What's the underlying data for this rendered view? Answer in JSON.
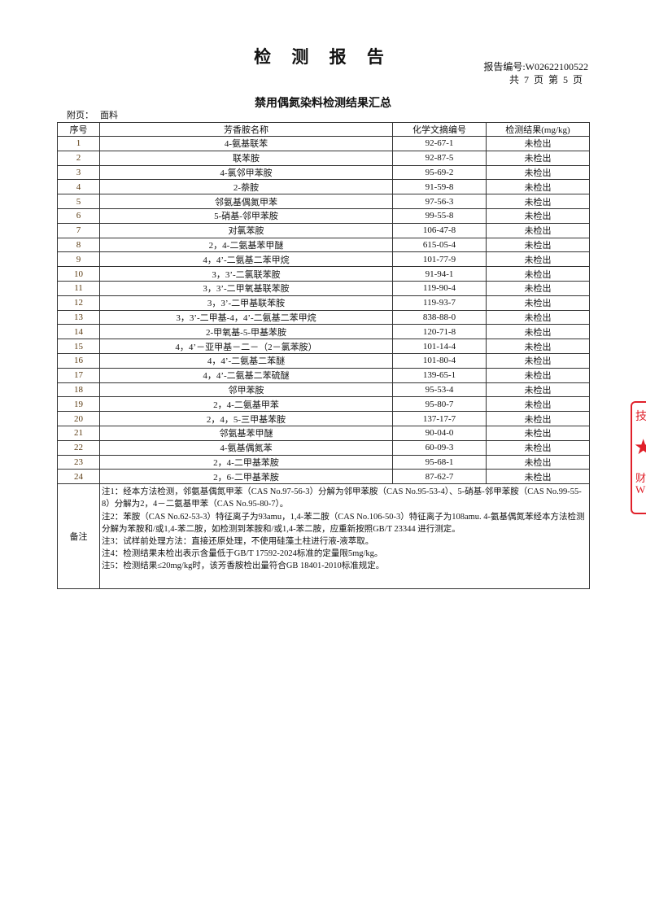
{
  "header": {
    "title": "检 测 报 告",
    "report_no": "报告编号:W02622100522",
    "pages": "共 7 页 第 5 页"
  },
  "subtitle": "禁用偶氮染料检测结果汇总",
  "appendix": {
    "label": "附页：",
    "value": "面料"
  },
  "table": {
    "headers": [
      "序号",
      "芳香胺名称",
      "化学文摘编号",
      "检测结果(mg/kg)"
    ],
    "rows": [
      [
        "1",
        "4-氨基联苯",
        "92-67-1",
        "未检出"
      ],
      [
        "2",
        "联苯胺",
        "92-87-5",
        "未检出"
      ],
      [
        "3",
        "4-氯邻甲苯胺",
        "95-69-2",
        "未检出"
      ],
      [
        "4",
        "2-萘胺",
        "91-59-8",
        "未检出"
      ],
      [
        "5",
        "邻氨基偶氮甲苯",
        "97-56-3",
        "未检出"
      ],
      [
        "6",
        "5-硝基-邻甲苯胺",
        "99-55-8",
        "未检出"
      ],
      [
        "7",
        "对氯苯胺",
        "106-47-8",
        "未检出"
      ],
      [
        "8",
        "2，4-二氨基苯甲醚",
        "615-05-4",
        "未检出"
      ],
      [
        "9",
        "4，4’-二氨基二苯甲烷",
        "101-77-9",
        "未检出"
      ],
      [
        "10",
        "3，3’-二氯联苯胺",
        "91-94-1",
        "未检出"
      ],
      [
        "11",
        "3，3’-二甲氧基联苯胺",
        "119-90-4",
        "未检出"
      ],
      [
        "12",
        "3，3’-二甲基联苯胺",
        "119-93-7",
        "未检出"
      ],
      [
        "13",
        "3，3’-二甲基-4，4’-二氨基二苯甲烷",
        "838-88-0",
        "未检出"
      ],
      [
        "14",
        "2-甲氧基-5-甲基苯胺",
        "120-71-8",
        "未检出"
      ],
      [
        "15",
        "4，4’－亚甲基－二－（2－氯苯胺）",
        "101-14-4",
        "未检出"
      ],
      [
        "16",
        "4，4’-二氨基二苯醚",
        "101-80-4",
        "未检出"
      ],
      [
        "17",
        "4，4’-二氨基二苯硫醚",
        "139-65-1",
        "未检出"
      ],
      [
        "18",
        "邻甲苯胺",
        "95-53-4",
        "未检出"
      ],
      [
        "19",
        "2，4-二氨基甲苯",
        "95-80-7",
        "未检出"
      ],
      [
        "20",
        "2，4，5-三甲基苯胺",
        "137-17-7",
        "未检出"
      ],
      [
        "21",
        "邻氨基苯甲醚",
        "90-04-0",
        "未检出"
      ],
      [
        "22",
        "4-氨基偶氮苯",
        "60-09-3",
        "未检出"
      ],
      [
        "23",
        "2，4-二甲基苯胺",
        "95-68-1",
        "未检出"
      ],
      [
        "24",
        "2，6-二甲基苯胺",
        "87-62-7",
        "未检出"
      ]
    ],
    "notes_label": "备注",
    "notes": [
      "注1：经本方法检测，邻氨基偶氮甲苯（CAS No.97-56-3）分解为邻甲苯胺（CAS No.95-53-4）、5-硝基-邻甲苯胺（CAS No.99-55-8）分解为2，4－二氨基甲苯（CAS No.95-80-7）。",
      "注2：苯胺（CAS No.62-53-3）特征离子为93amu，1,4-苯二胺（CAS No.106-50-3）特征离子为108amu. 4-氨基偶氮苯经本方法检测分解为苯胺和/或1,4-苯二胺，如检测到苯胺和/或1,4-苯二胺，应重新按照GB/T 23344 进行测定。",
      "注3：试样前处理方法：直接还原处理，不使用硅藻土柱进行液-液萃取。",
      "注4：检测结果未检出表示含量低于GB/T 17592-2024标准的定量限5mg/kg。",
      "注5：检测结果≤20mg/kg时，该芳香胺检出量符合GB 18401-2010标准规定。"
    ]
  },
  "stamp": {
    "text_top": "技术",
    "text_bottom": "财\nW",
    "color": "#e0202a"
  }
}
